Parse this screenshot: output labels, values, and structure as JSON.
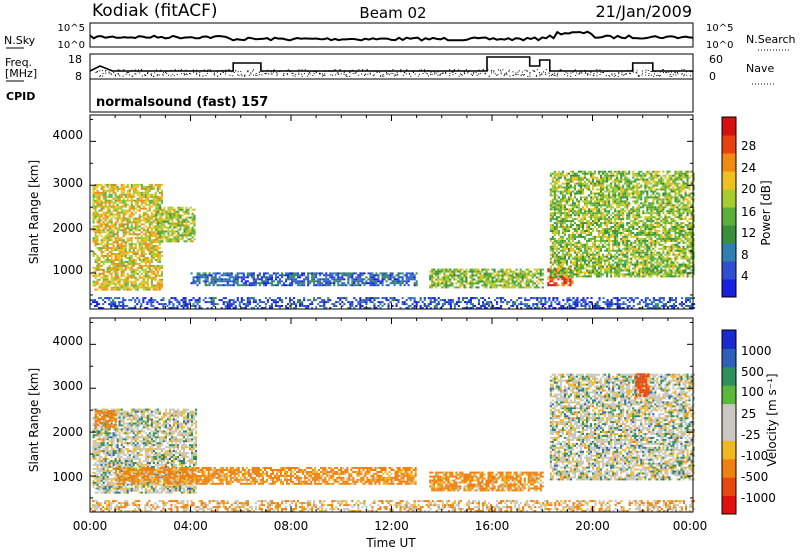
{
  "header": {
    "station": "Kodiak (fitACF)",
    "beam": "Beam 02",
    "date": "21/Jan/2009"
  },
  "top_panel": {
    "left_label": "N.Sky",
    "left_ticks": [
      "10^5",
      "10^0"
    ],
    "right_ticks": [
      "10^5",
      "10^0"
    ],
    "right_label": "N.Search"
  },
  "freq_panel": {
    "left_label_1": "Freq.",
    "left_label_2": "[MHz]",
    "left_ticks": [
      "18",
      "8"
    ],
    "right_ticks": [
      "60",
      "0"
    ],
    "right_label": "Nave"
  },
  "cpid": {
    "label": "CPID",
    "program": "normalsound (fast) 157"
  },
  "xaxis": {
    "label": "Time UT",
    "ticks": [
      "00:00",
      "04:00",
      "08:00",
      "12:00",
      "16:00",
      "20:00",
      "00:00"
    ]
  },
  "power_panel": {
    "ylabel": "Slant Range [km]",
    "yticks": [
      "4000",
      "3000",
      "2000",
      "1000"
    ],
    "colorbar_label": "Power [dB]",
    "colorbar_ticks": [
      "28",
      "24",
      "20",
      "16",
      "12",
      "8",
      "4"
    ]
  },
  "velocity_panel": {
    "ylabel": "Slant Range [km]",
    "yticks": [
      "4000",
      "3000",
      "2000",
      "1000"
    ],
    "colorbar_label": "Velocity [m s⁻¹]",
    "colorbar_ticks": [
      "1000",
      "500",
      "100",
      "25",
      "-25",
      "-100",
      "-500",
      "-1000"
    ]
  },
  "chart_data": [
    {
      "type": "heatmap",
      "name": "Power",
      "x_range_hours": [
        0,
        24
      ],
      "y_range_km": [
        180,
        4600
      ],
      "colorbar_range_db": [
        0,
        32
      ],
      "colors": [
        "#1a20e0",
        "#2f4fd0",
        "#2f7fb0",
        "#3a8f3a",
        "#59b03a",
        "#a8cc30",
        "#f0c020",
        "#f08a10",
        "#e84010",
        "#d41010"
      ],
      "regions": [
        {
          "t": [
            0.1,
            2.9
          ],
          "r": [
            600,
            3000
          ],
          "level": 0.62
        },
        {
          "t": [
            2.6,
            4.2
          ],
          "r": [
            1700,
            2500
          ],
          "level": 0.55
        },
        {
          "t": [
            4.0,
            13.0
          ],
          "r": [
            700,
            1000
          ],
          "level": 0.2
        },
        {
          "t": [
            13.5,
            18.0
          ],
          "r": [
            650,
            1100
          ],
          "level": 0.5
        },
        {
          "t": [
            18.2,
            19.2
          ],
          "r": [
            700,
            1100
          ],
          "level": 0.85
        },
        {
          "t": [
            18.3,
            24.0
          ],
          "r": [
            900,
            3300
          ],
          "level": 0.5
        },
        {
          "t": [
            0,
            24
          ],
          "r": [
            180,
            450
          ],
          "level": 0.15
        }
      ]
    },
    {
      "type": "heatmap",
      "name": "Velocity",
      "x_range_hours": [
        0,
        24
      ],
      "y_range_km": [
        180,
        4600
      ],
      "colorbar_range_ms": [
        -1000,
        1000
      ],
      "colors": [
        "#1a2ad0",
        "#2f60b8",
        "#2f8f5a",
        "#5ab83a",
        "#c8c8c0",
        "#c8c8c0",
        "#f0b820",
        "#f08010",
        "#e84810",
        "#e01010"
      ],
      "regions": [
        {
          "t": [
            0.1,
            4.2
          ],
          "r": [
            600,
            2500
          ],
          "v": 0
        },
        {
          "t": [
            0.2,
            1.0
          ],
          "r": [
            2100,
            2500
          ],
          "v": -200
        },
        {
          "t": [
            1.0,
            13.0
          ],
          "r": [
            800,
            1200
          ],
          "v": -150
        },
        {
          "t": [
            13.5,
            18.0
          ],
          "r": [
            650,
            1100
          ],
          "v": -150
        },
        {
          "t": [
            18.3,
            24.0
          ],
          "r": [
            900,
            3300
          ],
          "v": 0
        },
        {
          "t": [
            21.7,
            22.2
          ],
          "r": [
            2800,
            3300
          ],
          "v": -600
        },
        {
          "t": [
            0,
            24
          ],
          "r": [
            180,
            450
          ],
          "v": -80
        }
      ]
    }
  ]
}
